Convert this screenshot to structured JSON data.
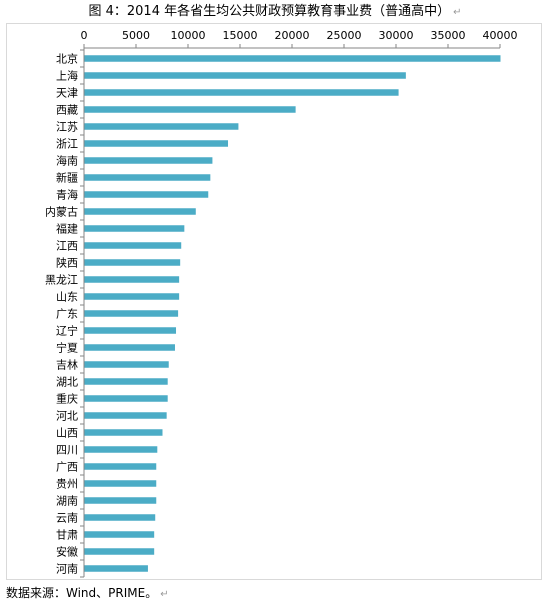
{
  "title": "图 4：2014 年各省生均公共财政预算教育事业费（普通高中）",
  "return_mark": "↵",
  "source": "数据来源：Wind、PRIME。",
  "chart_data": {
    "type": "bar",
    "orientation": "horizontal",
    "categories": [
      "北京",
      "上海",
      "天津",
      "西藏",
      "江苏",
      "浙江",
      "海南",
      "新疆",
      "青海",
      "内蒙古",
      "福建",
      "江西",
      "陕西",
      "黑龙江",
      "山东",
      "广东",
      "辽宁",
      "宁夏",
      "吉林",
      "湖北",
      "重庆",
      "河北",
      "山西",
      "四川",
      "广西",
      "贵州",
      "湖南",
      "云南",
      "甘肃",
      "安徽",
      "河南"
    ],
    "values": [
      40000,
      30900,
      30200,
      20300,
      14800,
      13800,
      12300,
      12100,
      11900,
      10700,
      9600,
      9300,
      9200,
      9100,
      9100,
      9000,
      8800,
      8700,
      8100,
      8000,
      8000,
      7900,
      7500,
      7000,
      6900,
      6900,
      6900,
      6800,
      6700,
      6700,
      6100
    ],
    "xlim": [
      0,
      40000
    ],
    "xticks": [
      0,
      5000,
      10000,
      15000,
      20000,
      25000,
      30000,
      35000,
      40000
    ],
    "xaxis_position": "top",
    "grid": false,
    "legend": "none",
    "bar_color": "#4bacc6"
  }
}
